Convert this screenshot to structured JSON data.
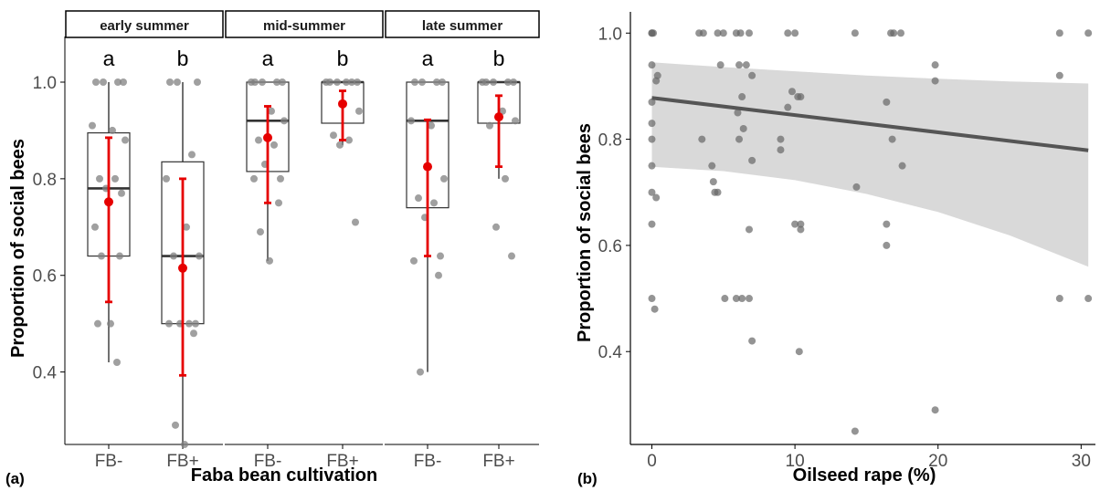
{
  "chart_data": [
    {
      "type": "box",
      "panel_label": "(a)",
      "xlabel": "Faba bean cultivation",
      "ylabel": "Proportion of social bees",
      "ylim": [
        0.23,
        1.1
      ],
      "yticks": [
        "0.4",
        "0.6",
        "0.8",
        "1.0"
      ],
      "ytick_values": [
        0.4,
        0.6,
        0.8,
        1.0
      ],
      "grid": false,
      "colors": {
        "points": "#808080",
        "box": "#333333",
        "mean_ci": "#e60000",
        "strip_fill": "#ffffff"
      },
      "facets": [
        {
          "name": "early summer",
          "groups": [
            {
              "category": "FB-",
              "letter": "a",
              "box": {
                "q1": 0.64,
                "median": 0.78,
                "q3": 0.895,
                "whisker_low": 0.42,
                "whisker_high": 1.0
              },
              "mean": 0.752,
              "ci": [
                0.545,
                0.885
              ],
              "points": [
                1.0,
                1.0,
                1.0,
                1.0,
                0.91,
                0.9,
                0.88,
                0.8,
                0.8,
                0.78,
                0.77,
                0.7,
                0.64,
                0.64,
                0.5,
                0.5,
                0.42
              ]
            },
            {
              "category": "FB+",
              "letter": "b",
              "box": {
                "q1": 0.5,
                "median": 0.64,
                "q3": 0.835,
                "whisker_low": 0.25,
                "whisker_high": 1.0
              },
              "mean": 0.615,
              "ci": [
                0.393,
                0.8
              ],
              "points": [
                1.0,
                1.0,
                1.0,
                0.85,
                0.8,
                0.7,
                0.64,
                0.64,
                0.5,
                0.5,
                0.5,
                0.5,
                0.48,
                0.29,
                0.25
              ]
            }
          ]
        },
        {
          "name": "mid-summer",
          "groups": [
            {
              "category": "FB-",
              "letter": "a",
              "box": {
                "q1": 0.815,
                "median": 0.92,
                "q3": 1.0,
                "whisker_low": 0.63,
                "whisker_high": 1.0
              },
              "mean": 0.885,
              "ci": [
                0.75,
                0.95
              ],
              "points": [
                1.0,
                1.0,
                1.0,
                1.0,
                1.0,
                0.94,
                0.92,
                0.88,
                0.87,
                0.83,
                0.8,
                0.8,
                0.75,
                0.69,
                0.63
              ]
            },
            {
              "category": "FB+",
              "letter": "b",
              "box": {
                "q1": 0.915,
                "median": 1.0,
                "q3": 1.0,
                "whisker_low": 0.87,
                "whisker_high": 1.0
              },
              "mean": 0.955,
              "ci": [
                0.88,
                0.982
              ],
              "points": [
                1.0,
                1.0,
                1.0,
                1.0,
                1.0,
                1.0,
                0.94,
                0.89,
                0.88,
                0.87,
                0.71
              ]
            }
          ]
        },
        {
          "name": "late summer",
          "groups": [
            {
              "category": "FB-",
              "letter": "a",
              "box": {
                "q1": 0.74,
                "median": 0.92,
                "q3": 1.0,
                "whisker_low": 0.4,
                "whisker_high": 1.0
              },
              "mean": 0.825,
              "ci": [
                0.64,
                0.922
              ],
              "points": [
                1.0,
                1.0,
                1.0,
                1.0,
                0.92,
                0.91,
                0.8,
                0.76,
                0.75,
                0.72,
                0.64,
                0.63,
                0.6,
                0.4
              ]
            },
            {
              "category": "FB+",
              "letter": "b",
              "box": {
                "q1": 0.915,
                "median": 1.0,
                "q3": 1.0,
                "whisker_low": 0.8,
                "whisker_high": 1.0
              },
              "mean": 0.928,
              "ci": [
                0.825,
                0.972
              ],
              "points": [
                1.0,
                1.0,
                1.0,
                1.0,
                1.0,
                0.94,
                0.92,
                0.91,
                0.8,
                0.7,
                0.64
              ]
            }
          ]
        }
      ]
    },
    {
      "type": "scatter",
      "panel_label": "(b)",
      "xlabel": "Oilseed rape (%)",
      "ylabel": "Proportion of social bees",
      "xlim": [
        -1.5,
        31
      ],
      "ylim": [
        0.225,
        1.04
      ],
      "xticks": [
        "0",
        "10",
        "20",
        "30"
      ],
      "xtick_values": [
        0,
        10,
        20,
        30
      ],
      "yticks": [
        "0.4",
        "0.6",
        "0.8",
        "1.0"
      ],
      "ytick_values": [
        0.4,
        0.6,
        0.8,
        1.0
      ],
      "grid": false,
      "colors": {
        "points": "#666666",
        "fit_line": "#555555",
        "ci_band": "#d9d9d9"
      },
      "fit": {
        "x": [
          0,
          30.5
        ],
        "y": [
          0.878,
          0.779
        ]
      },
      "ci_band": {
        "x": [
          0,
          5,
          10,
          15,
          20,
          25,
          30.5
        ],
        "lower": [
          0.748,
          0.74,
          0.723,
          0.697,
          0.663,
          0.619,
          0.56
        ],
        "upper": [
          0.945,
          0.936,
          0.928,
          0.92,
          0.914,
          0.909,
          0.905
        ]
      },
      "points": [
        {
          "x": 0,
          "y": 1.0
        },
        {
          "x": 0,
          "y": 1.0
        },
        {
          "x": 0.1,
          "y": 1.0
        },
        {
          "x": 0,
          "y": 0.94
        },
        {
          "x": 0.4,
          "y": 0.92
        },
        {
          "x": 0.3,
          "y": 0.91
        },
        {
          "x": 0,
          "y": 0.87
        },
        {
          "x": 0,
          "y": 0.83
        },
        {
          "x": 0,
          "y": 0.8
        },
        {
          "x": 0,
          "y": 0.75
        },
        {
          "x": 0,
          "y": 0.7
        },
        {
          "x": 0.3,
          "y": 0.69
        },
        {
          "x": 0,
          "y": 0.64
        },
        {
          "x": 0,
          "y": 0.5
        },
        {
          "x": 0.2,
          "y": 0.48
        },
        {
          "x": 3.3,
          "y": 1.0
        },
        {
          "x": 3.6,
          "y": 1.0
        },
        {
          "x": 4.6,
          "y": 1.0
        },
        {
          "x": 5.0,
          "y": 1.0
        },
        {
          "x": 5.9,
          "y": 1.0
        },
        {
          "x": 6.2,
          "y": 1.0
        },
        {
          "x": 6.8,
          "y": 1.0
        },
        {
          "x": 9.5,
          "y": 1.0
        },
        {
          "x": 10.0,
          "y": 1.0
        },
        {
          "x": 14.2,
          "y": 1.0
        },
        {
          "x": 16.7,
          "y": 1.0
        },
        {
          "x": 16.9,
          "y": 1.0
        },
        {
          "x": 17.4,
          "y": 1.0
        },
        {
          "x": 28.5,
          "y": 1.0
        },
        {
          "x": 30.5,
          "y": 1.0
        },
        {
          "x": 4.8,
          "y": 0.94
        },
        {
          "x": 6.1,
          "y": 0.94
        },
        {
          "x": 6.6,
          "y": 0.94
        },
        {
          "x": 7.0,
          "y": 0.92
        },
        {
          "x": 6.3,
          "y": 0.88
        },
        {
          "x": 9.8,
          "y": 0.89
        },
        {
          "x": 10.2,
          "y": 0.88
        },
        {
          "x": 10.4,
          "y": 0.88
        },
        {
          "x": 6.0,
          "y": 0.85
        },
        {
          "x": 9.5,
          "y": 0.86
        },
        {
          "x": 6.4,
          "y": 0.82
        },
        {
          "x": 3.5,
          "y": 0.8
        },
        {
          "x": 6.1,
          "y": 0.8
        },
        {
          "x": 9.0,
          "y": 0.8
        },
        {
          "x": 9.0,
          "y": 0.78
        },
        {
          "x": 16.4,
          "y": 0.87
        },
        {
          "x": 16.8,
          "y": 0.8
        },
        {
          "x": 17.5,
          "y": 0.75
        },
        {
          "x": 19.8,
          "y": 0.94
        },
        {
          "x": 19.8,
          "y": 0.91
        },
        {
          "x": 28.5,
          "y": 0.92
        },
        {
          "x": 4.2,
          "y": 0.75
        },
        {
          "x": 4.3,
          "y": 0.72
        },
        {
          "x": 4.4,
          "y": 0.7
        },
        {
          "x": 4.6,
          "y": 0.7
        },
        {
          "x": 7.0,
          "y": 0.76
        },
        {
          "x": 14.3,
          "y": 0.71
        },
        {
          "x": 6.8,
          "y": 0.63
        },
        {
          "x": 10.0,
          "y": 0.64
        },
        {
          "x": 10.4,
          "y": 0.64
        },
        {
          "x": 10.4,
          "y": 0.63
        },
        {
          "x": 16.4,
          "y": 0.64
        },
        {
          "x": 16.4,
          "y": 0.6
        },
        {
          "x": 5.1,
          "y": 0.5
        },
        {
          "x": 5.9,
          "y": 0.5
        },
        {
          "x": 6.3,
          "y": 0.5
        },
        {
          "x": 6.8,
          "y": 0.5
        },
        {
          "x": 7.0,
          "y": 0.42
        },
        {
          "x": 10.3,
          "y": 0.4
        },
        {
          "x": 28.5,
          "y": 0.5
        },
        {
          "x": 30.5,
          "y": 0.5
        },
        {
          "x": 19.8,
          "y": 0.29
        },
        {
          "x": 14.2,
          "y": 0.25
        }
      ]
    }
  ]
}
